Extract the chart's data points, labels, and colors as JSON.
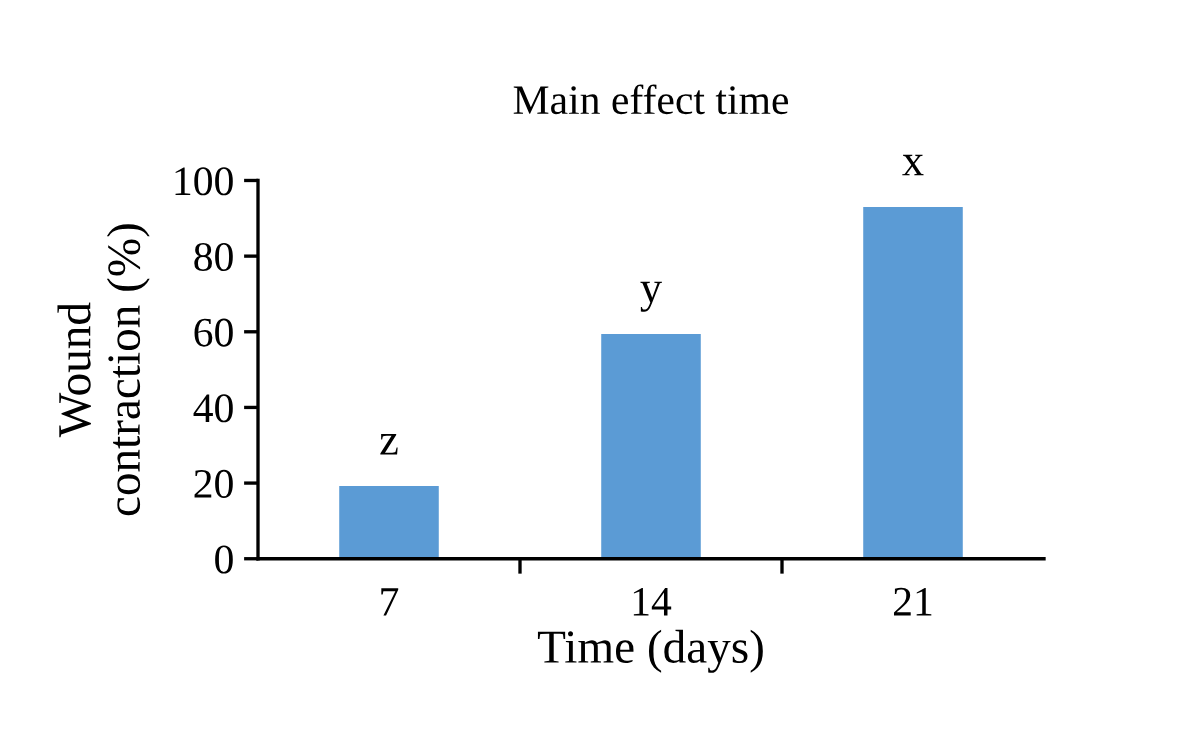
{
  "chart_data": {
    "type": "bar",
    "title": "Main effect time",
    "xlabel": "Time (days)",
    "ylabel": "Wound\ncontraction (%)",
    "categories": [
      "7",
      "14",
      "21"
    ],
    "values": [
      19.2,
      59.4,
      93.0
    ],
    "color": "#5b9bd5",
    "ylim": [
      0,
      100
    ],
    "yticks": [
      0,
      20,
      40,
      60,
      80,
      100
    ],
    "grid": false,
    "annotations": [
      {
        "text": "z",
        "x": "7",
        "y": 19.2
      },
      {
        "text": "y",
        "x": "14",
        "y": 59.4
      },
      {
        "text": "x",
        "x": "21",
        "y": 93.0
      }
    ]
  }
}
